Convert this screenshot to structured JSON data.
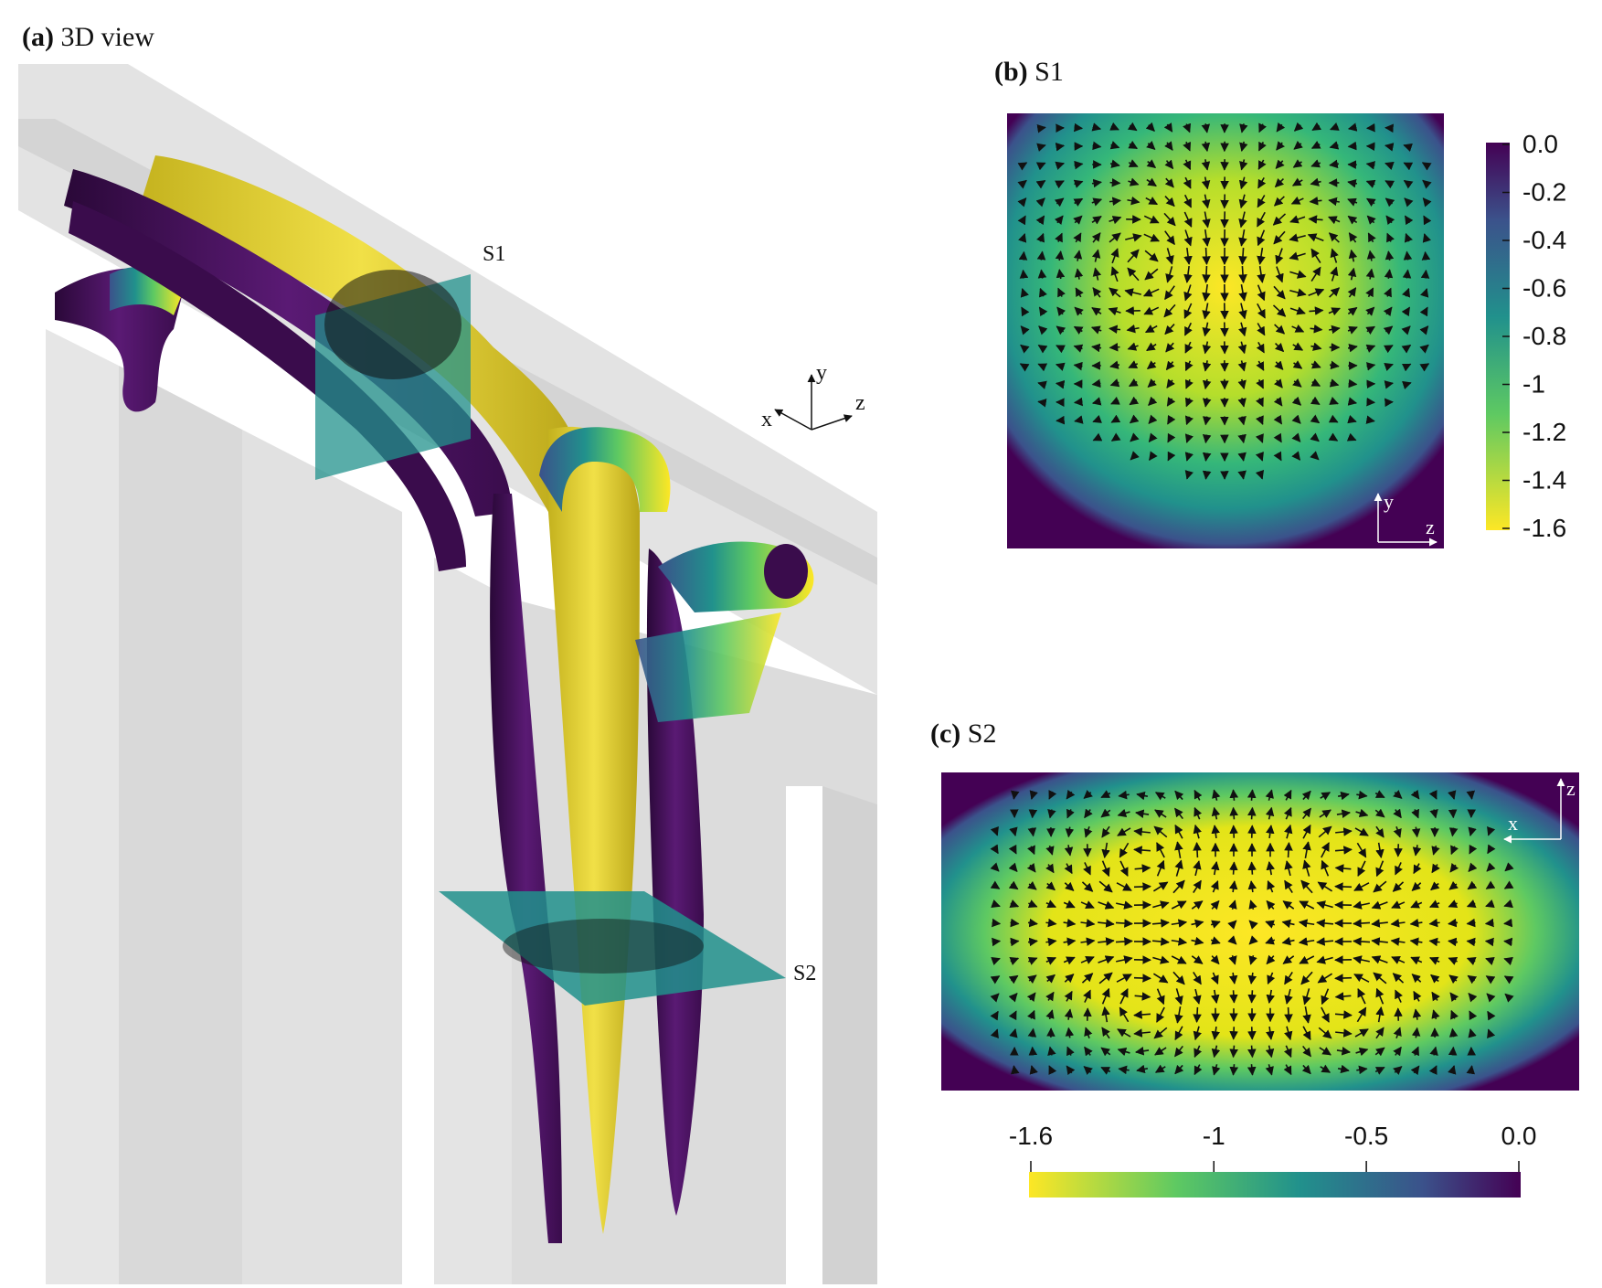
{
  "panel_a": {
    "letter": "(a)",
    "title": "3D view",
    "slice1": "S1",
    "slice2": "S2",
    "axes": {
      "x": "x",
      "y": "y",
      "z": "z"
    }
  },
  "panel_b": {
    "letter": "(b)",
    "title": "S1",
    "axis_v": "y",
    "axis_h": "z"
  },
  "panel_c": {
    "letter": "(c)",
    "title": "S2",
    "axis_v": "z",
    "axis_h": "x"
  },
  "colorbar_b": {
    "ticks": [
      "0.0",
      "-0.2",
      "-0.4",
      "-0.6",
      "-0.8",
      "-1",
      "-1.2",
      "-1.4",
      "-1.6"
    ]
  },
  "colorbar_c": {
    "ticks": [
      "-1.6",
      "-1",
      "-0.5",
      "0.0"
    ],
    "tick_values": [
      -1.6,
      -1,
      -0.5,
      0.0
    ],
    "range": [
      -1.6,
      0.0
    ]
  },
  "colors": {
    "low": "#fde725",
    "mid": "#21918c",
    "high": "#440154",
    "wall": "#dedede"
  }
}
